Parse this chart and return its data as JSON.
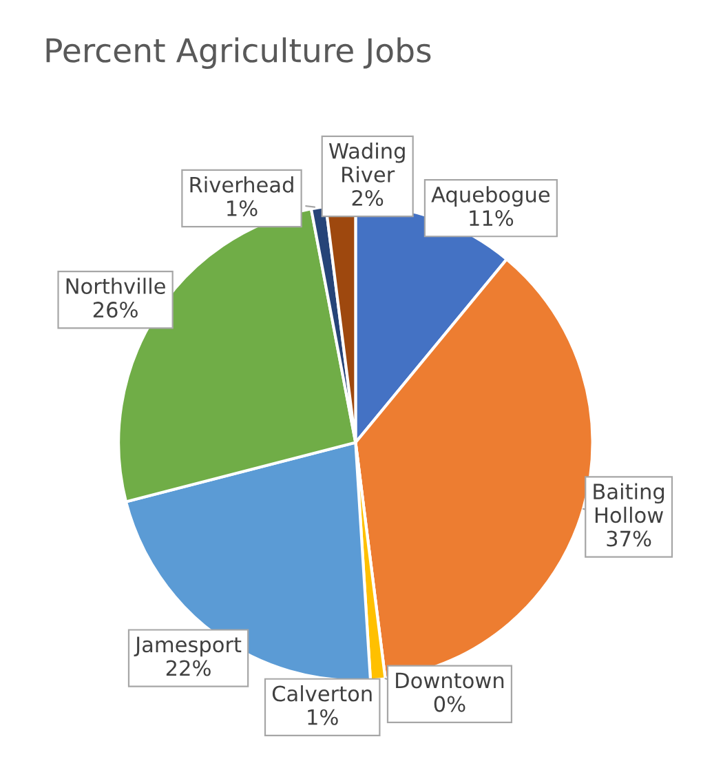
{
  "chart_data": {
    "type": "pie",
    "title": "Percent Agriculture Jobs",
    "categories": [
      "Aquebogue",
      "Baiting Hollow",
      "Downtown",
      "Calverton",
      "Jamesport",
      "Northville",
      "Riverhead",
      "Wading River"
    ],
    "values": [
      11,
      37,
      0,
      1,
      22,
      26,
      1,
      2
    ],
    "colors": [
      "#4472c4",
      "#ed7d31",
      "#a5a5a5",
      "#ffc000",
      "#5b9bd5",
      "#70ad47",
      "#264478",
      "#9e480e"
    ],
    "value_labels": [
      "11%",
      "37%",
      "0%",
      "1%",
      "22%",
      "26%",
      "1%",
      "2%"
    ]
  }
}
